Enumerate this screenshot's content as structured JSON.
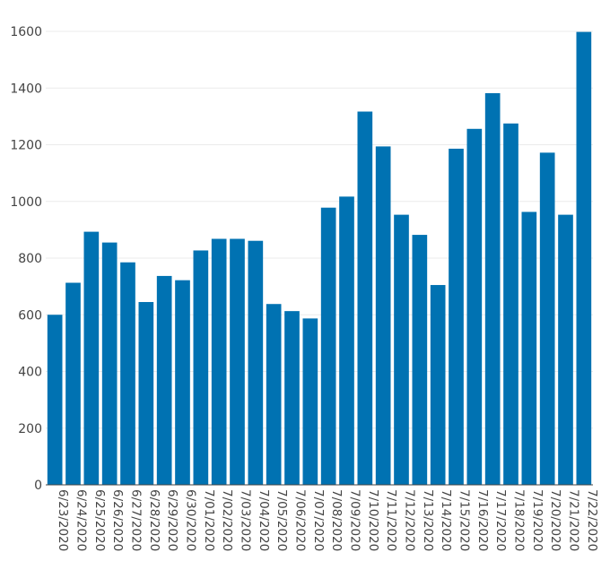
{
  "chart_data": {
    "type": "bar",
    "title": "",
    "xlabel": "",
    "ylabel": "",
    "ylim": [
      0,
      1600
    ],
    "yticks": [
      0,
      200,
      400,
      600,
      800,
      1000,
      1200,
      1400,
      1600
    ],
    "grid": "horizontal",
    "bar_color": "#0072b2",
    "categories": [
      "6/23/2020",
      "6/24/2020",
      "6/25/2020",
      "6/26/2020",
      "6/27/2020",
      "6/28/2020",
      "6/29/2020",
      "6/30/2020",
      "7/01/2020",
      "7/02/2020",
      "7/03/2020",
      "7/04/2020",
      "7/05/2020",
      "7/06/2020",
      "7/07/2020",
      "7/08/2020",
      "7/09/2020",
      "7/10/2020",
      "7/11/2020",
      "7/12/2020",
      "7/13/2020",
      "7/14/2020",
      "7/15/2020",
      "7/16/2020",
      "7/17/2020",
      "7/18/2020",
      "7/19/2020",
      "7/20/2020",
      "7/21/2020",
      "7/22/2020"
    ],
    "values": [
      600,
      713,
      893,
      855,
      785,
      645,
      737,
      722,
      827,
      868,
      868,
      861,
      638,
      613,
      587,
      978,
      1017,
      1317,
      1194,
      953,
      882,
      705,
      1186,
      1256,
      1382,
      1275,
      963,
      1172,
      953,
      1598
    ]
  }
}
